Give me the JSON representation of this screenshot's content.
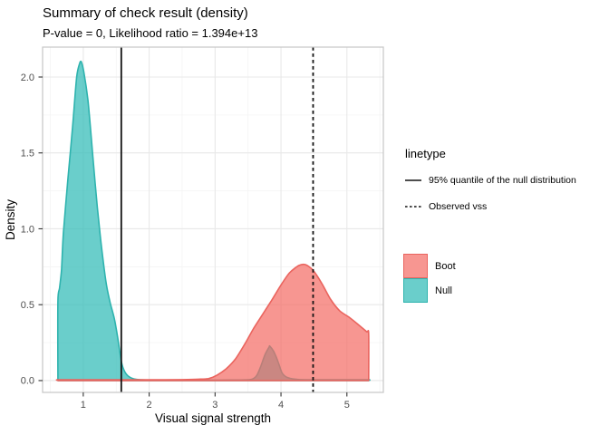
{
  "chart_data": {
    "type": "area",
    "subtype": "density",
    "title": "Summary of check result (density)",
    "subtitle": "P-value = 0, Likelihood ratio = 1.394e+13",
    "xlabel": "Visual signal strength",
    "ylabel": "Density",
    "x_ticks": [
      "1",
      "2",
      "3",
      "4",
      "5"
    ],
    "x_tick_values": [
      1,
      2,
      3,
      4,
      5
    ],
    "y_ticks": [
      "0.0",
      "0.5",
      "1.0",
      "1.5",
      "2.0"
    ],
    "y_tick_values": [
      0,
      0.5,
      1.0,
      1.5,
      2.0
    ],
    "x_minor": [
      0.5,
      1.5,
      2.5,
      3.5,
      4.5,
      5.5
    ],
    "y_minor": [
      0.25,
      0.75,
      1.25,
      1.75
    ],
    "x_domain": [
      0.383,
      5.553
    ],
    "y_domain": [
      -0.078,
      2.197
    ],
    "grid": true,
    "legend_position": "right",
    "colors": {
      "boot_fill": "rgba(244,106,98,0.70)",
      "boot_stroke": "#ea645e",
      "null_fill": "rgba(56,190,185,0.75)",
      "null_stroke": "#2eb3ae",
      "vline": "#141414",
      "grid_major": "#e8e8e8",
      "grid_minor": "#f4f4f4",
      "panel_border": "#c6c6c6",
      "tick_label": "#4d4d4d"
    },
    "series": [
      {
        "name": "Null",
        "points": [
          [
            0.615,
            0
          ],
          [
            0.615,
            0.525
          ],
          [
            0.64,
            0.61
          ],
          [
            0.67,
            0.73
          ],
          [
            0.7,
            0.985
          ],
          [
            0.77,
            1.34
          ],
          [
            0.84,
            1.68
          ],
          [
            0.9,
            2.0
          ],
          [
            0.945,
            2.09
          ],
          [
            0.97,
            2.1
          ],
          [
            1.01,
            2.03
          ],
          [
            1.07,
            1.85
          ],
          [
            1.11,
            1.66
          ],
          [
            1.18,
            1.3
          ],
          [
            1.25,
            0.985
          ],
          [
            1.32,
            0.73
          ],
          [
            1.36,
            0.61
          ],
          [
            1.41,
            0.51
          ],
          [
            1.47,
            0.41
          ],
          [
            1.52,
            0.29
          ],
          [
            1.58,
            0.12
          ],
          [
            1.63,
            0.058
          ],
          [
            1.7,
            0.024
          ],
          [
            1.8,
            0.008
          ],
          [
            1.95,
            0.004
          ],
          [
            2.4,
            0.003
          ],
          [
            2.9,
            0.003
          ],
          [
            3.3,
            0.004
          ],
          [
            3.55,
            0.008
          ],
          [
            3.63,
            0.032
          ],
          [
            3.69,
            0.09
          ],
          [
            3.76,
            0.173
          ],
          [
            3.82,
            0.221
          ],
          [
            3.83,
            0.227
          ],
          [
            3.89,
            0.191
          ],
          [
            3.96,
            0.119
          ],
          [
            4.02,
            0.048
          ],
          [
            4.11,
            0.018
          ],
          [
            4.27,
            0.007
          ],
          [
            4.6,
            0.005
          ],
          [
            5.0,
            0.005
          ],
          [
            5.33,
            0.005
          ],
          [
            5.33,
            0
          ]
        ]
      },
      {
        "name": "Boot",
        "points": [
          [
            0.615,
            0
          ],
          [
            0.615,
            0.005
          ],
          [
            1.0,
            0.005
          ],
          [
            1.5,
            0.005
          ],
          [
            2.0,
            0.005
          ],
          [
            2.5,
            0.006
          ],
          [
            2.75,
            0.009
          ],
          [
            2.9,
            0.013
          ],
          [
            3.03,
            0.036
          ],
          [
            3.17,
            0.078
          ],
          [
            3.31,
            0.143
          ],
          [
            3.45,
            0.24
          ],
          [
            3.58,
            0.34
          ],
          [
            3.72,
            0.435
          ],
          [
            3.86,
            0.53
          ],
          [
            4.0,
            0.63
          ],
          [
            4.13,
            0.71
          ],
          [
            4.27,
            0.758
          ],
          [
            4.37,
            0.764
          ],
          [
            4.48,
            0.73
          ],
          [
            4.62,
            0.64
          ],
          [
            4.75,
            0.537
          ],
          [
            4.89,
            0.46
          ],
          [
            5.03,
            0.418
          ],
          [
            5.17,
            0.37
          ],
          [
            5.3,
            0.322
          ],
          [
            5.33,
            0.31
          ],
          [
            5.33,
            0
          ]
        ]
      }
    ],
    "vlines": [
      {
        "label": "95% quantile of the null distribution",
        "x": 1.577,
        "style": "solid"
      },
      {
        "label": "Observed vss",
        "x": 4.487,
        "style": "dashed"
      }
    ],
    "legend_linetype": {
      "title": "linetype",
      "items": [
        {
          "label": "95% quantile of the null distribution",
          "style": "solid"
        },
        {
          "label": "Observed vss",
          "style": "dashed"
        }
      ]
    },
    "legend_fill": {
      "items": [
        {
          "label": "Boot",
          "fill": "rgba(244,106,98,0.70)",
          "stroke": "#ea645e"
        },
        {
          "label": "Null",
          "fill": "rgba(56,190,185,0.75)",
          "stroke": "#2eb3ae"
        }
      ]
    }
  }
}
